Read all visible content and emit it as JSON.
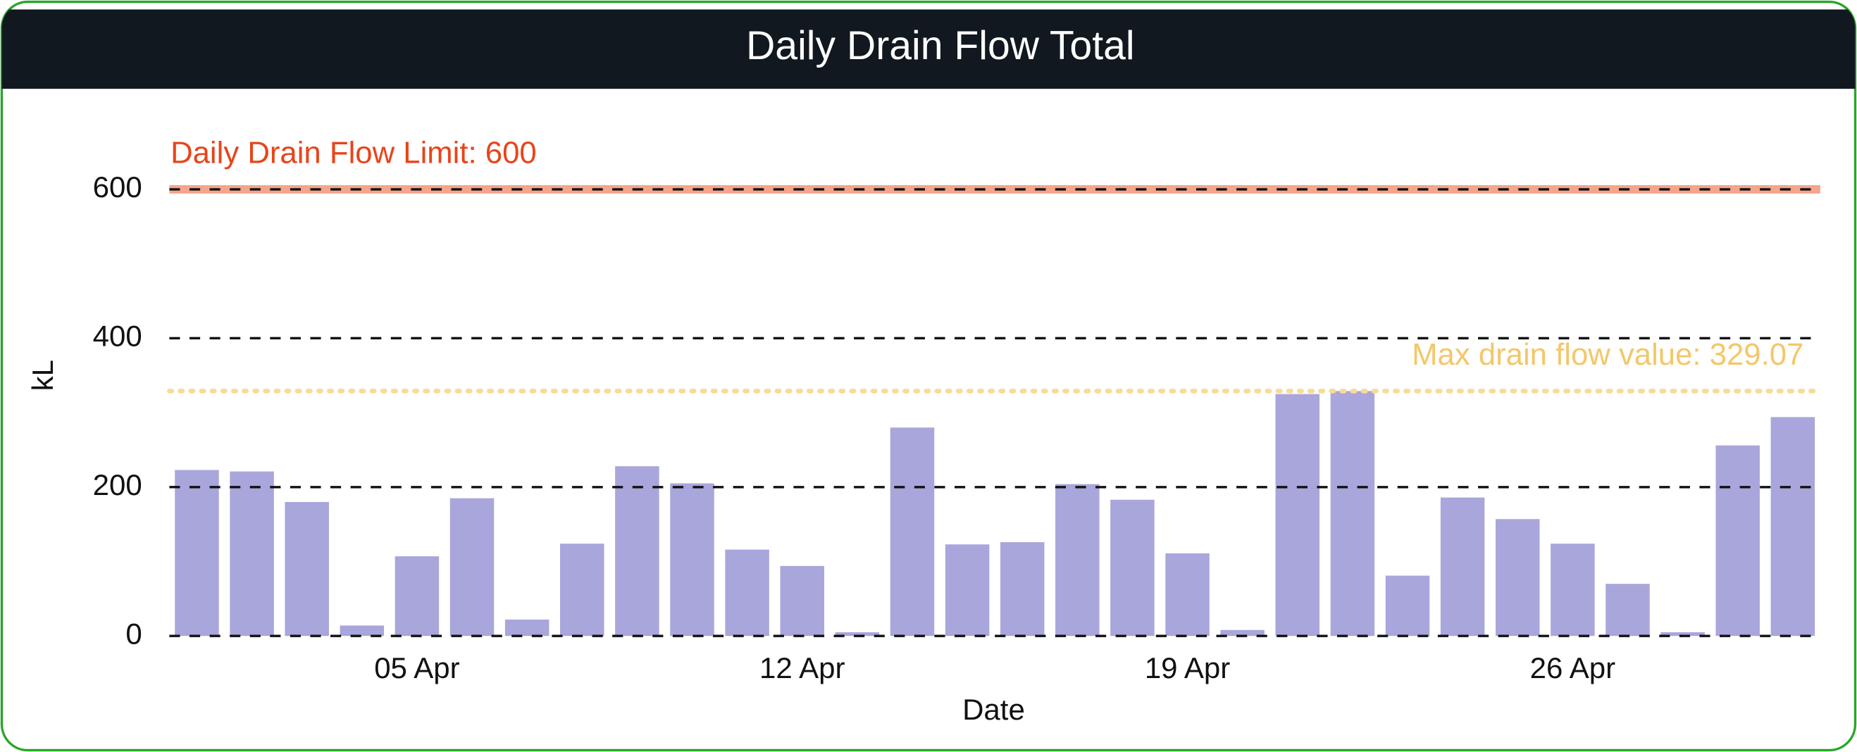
{
  "chart_data": {
    "type": "bar",
    "title": "Daily Drain Flow Total",
    "xlabel": "Date",
    "ylabel": "kL",
    "categories": [
      null,
      null,
      null,
      null,
      "05 Apr",
      null,
      null,
      null,
      null,
      null,
      null,
      "12 Apr",
      null,
      null,
      null,
      null,
      null,
      null,
      "19 Apr",
      null,
      null,
      null,
      null,
      null,
      null,
      "26 Apr",
      null,
      null,
      null,
      null
    ],
    "values": [
      223,
      221,
      180,
      14,
      107,
      185,
      22,
      124,
      228,
      205,
      116,
      94,
      5,
      280,
      123,
      126,
      204,
      183,
      111,
      8,
      325,
      329.07,
      81,
      186,
      157,
      124,
      70,
      5,
      256,
      294
    ],
    "color": "#a9a6dc",
    "ylim": [
      0,
      680
    ],
    "yticks": [
      0,
      200,
      400,
      600
    ],
    "grid": true,
    "limit_line": {
      "label": "Daily Drain Flow Limit: 600",
      "value": 600,
      "color": "#f4a58a",
      "text_color": "#e8441a"
    },
    "max_line": {
      "label": "Max drain flow value: 329.07",
      "value": 329.07,
      "color": "#f7dc98",
      "text_color": "#f3c76a"
    }
  }
}
